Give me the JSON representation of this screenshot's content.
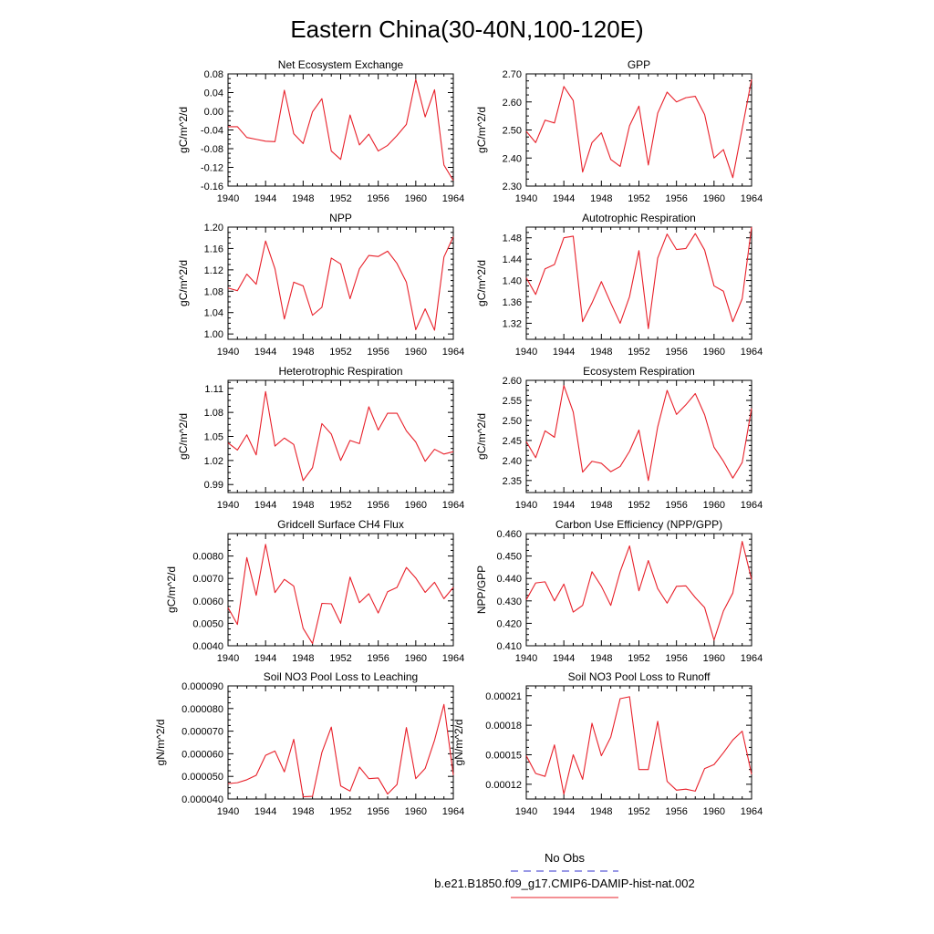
{
  "figure": {
    "title": "Eastern China(30-40N,100-120E)",
    "legend": [
      {
        "label": "No Obs",
        "color": "#3333cc",
        "style": "dashed"
      },
      {
        "label": "b.e21.B1850.f09_g17.CMIP6-DAMIP-hist-nat.002",
        "color": "#e8202a",
        "style": "solid"
      }
    ]
  },
  "chart_data": [
    {
      "type": "line",
      "title": "Net Ecosystem Exchange",
      "ylabel": "gC/m^2/d",
      "xlim": [
        1940,
        1964
      ],
      "ylim": [
        -0.16,
        0.08
      ],
      "xticks": [
        1940,
        1944,
        1948,
        1952,
        1956,
        1960,
        1964
      ],
      "yticks": [
        -0.16,
        -0.12,
        -0.08,
        -0.04,
        0.0,
        0.04,
        0.08
      ],
      "ytick_labels": [
        "-0.16",
        "-0.12",
        "-0.08",
        "-0.04",
        "0.00",
        "0.04",
        "0.08"
      ],
      "series": [
        {
          "color": "#e8202a",
          "x": [
            1940,
            1941,
            1942,
            1943,
            1944,
            1945,
            1946,
            1947,
            1948,
            1949,
            1950,
            1951,
            1952,
            1953,
            1954,
            1955,
            1956,
            1957,
            1958,
            1959,
            1960,
            1961,
            1962,
            1963,
            1964
          ],
          "values": [
            -0.033,
            -0.033,
            -0.056,
            -0.06,
            -0.064,
            -0.065,
            0.045,
            -0.048,
            -0.069,
            -0.001,
            0.027,
            -0.085,
            -0.103,
            -0.008,
            -0.072,
            -0.049,
            -0.085,
            -0.073,
            -0.052,
            -0.028,
            0.068,
            -0.012,
            0.046,
            -0.115,
            -0.148
          ]
        }
      ]
    },
    {
      "type": "line",
      "title": "GPP",
      "ylabel": "gC/m^2/d",
      "xlim": [
        1940,
        1964
      ],
      "ylim": [
        2.3,
        2.7
      ],
      "xticks": [
        1940,
        1944,
        1948,
        1952,
        1956,
        1960,
        1964
      ],
      "yticks": [
        2.3,
        2.4,
        2.5,
        2.6,
        2.7
      ],
      "ytick_labels": [
        "2.30",
        "2.40",
        "2.50",
        "2.60",
        "2.70"
      ],
      "series": [
        {
          "color": "#e8202a",
          "x": [
            1940,
            1941,
            1942,
            1943,
            1944,
            1945,
            1946,
            1947,
            1948,
            1949,
            1950,
            1951,
            1952,
            1953,
            1954,
            1955,
            1956,
            1957,
            1958,
            1959,
            1960,
            1961,
            1962,
            1963,
            1964
          ],
          "values": [
            2.495,
            2.455,
            2.535,
            2.525,
            2.655,
            2.605,
            2.35,
            2.455,
            2.49,
            2.395,
            2.37,
            2.515,
            2.585,
            2.375,
            2.56,
            2.635,
            2.6,
            2.615,
            2.62,
            2.555,
            2.4,
            2.43,
            2.33,
            2.505,
            2.68
          ]
        }
      ]
    },
    {
      "type": "line",
      "title": "NPP",
      "ylabel": "gC/m^2/d",
      "xlim": [
        1940,
        1964
      ],
      "ylim": [
        0.99,
        1.2
      ],
      "xticks": [
        1940,
        1944,
        1948,
        1952,
        1956,
        1960,
        1964
      ],
      "yticks": [
        1.0,
        1.04,
        1.08,
        1.12,
        1.16,
        1.2
      ],
      "ytick_labels": [
        "1.00",
        "1.04",
        "1.08",
        "1.12",
        "1.16",
        "1.20"
      ],
      "series": [
        {
          "color": "#e8202a",
          "x": [
            1940,
            1941,
            1942,
            1943,
            1944,
            1945,
            1946,
            1947,
            1948,
            1949,
            1950,
            1951,
            1952,
            1953,
            1954,
            1955,
            1956,
            1957,
            1958,
            1959,
            1960,
            1961,
            1962,
            1963,
            1964
          ],
          "values": [
            1.086,
            1.081,
            1.112,
            1.093,
            1.174,
            1.122,
            1.028,
            1.097,
            1.09,
            1.035,
            1.05,
            1.142,
            1.131,
            1.066,
            1.122,
            1.147,
            1.145,
            1.155,
            1.132,
            1.097,
            1.008,
            1.047,
            1.007,
            1.144,
            1.182
          ]
        }
      ]
    },
    {
      "type": "line",
      "title": "Autotrophic Respiration",
      "ylabel": "gC/m^2/d",
      "xlim": [
        1940,
        1964
      ],
      "ylim": [
        1.29,
        1.5
      ],
      "xticks": [
        1940,
        1944,
        1948,
        1952,
        1956,
        1960,
        1964
      ],
      "yticks": [
        1.32,
        1.36,
        1.4,
        1.44,
        1.48
      ],
      "ytick_labels": [
        "1.32",
        "1.36",
        "1.40",
        "1.44",
        "1.48"
      ],
      "series": [
        {
          "color": "#e8202a",
          "x": [
            1940,
            1941,
            1942,
            1943,
            1944,
            1945,
            1946,
            1947,
            1948,
            1949,
            1950,
            1951,
            1952,
            1953,
            1954,
            1955,
            1956,
            1957,
            1958,
            1959,
            1960,
            1961,
            1962,
            1963,
            1964
          ],
          "values": [
            1.405,
            1.374,
            1.422,
            1.43,
            1.48,
            1.483,
            1.323,
            1.358,
            1.398,
            1.358,
            1.32,
            1.37,
            1.456,
            1.31,
            1.442,
            1.487,
            1.458,
            1.46,
            1.488,
            1.457,
            1.39,
            1.38,
            1.323,
            1.366,
            1.5
          ]
        }
      ]
    },
    {
      "type": "line",
      "title": "Heterotrophic Respiration",
      "ylabel": "gC/m^2/d",
      "xlim": [
        1940,
        1964
      ],
      "ylim": [
        0.98,
        1.12
      ],
      "xticks": [
        1940,
        1944,
        1948,
        1952,
        1956,
        1960,
        1964
      ],
      "yticks": [
        0.99,
        1.02,
        1.05,
        1.08,
        1.11
      ],
      "ytick_labels": [
        "0.99",
        "1.02",
        "1.05",
        "1.08",
        "1.11"
      ],
      "series": [
        {
          "color": "#e8202a",
          "x": [
            1940,
            1941,
            1942,
            1943,
            1944,
            1945,
            1946,
            1947,
            1948,
            1949,
            1950,
            1951,
            1952,
            1953,
            1954,
            1955,
            1956,
            1957,
            1958,
            1959,
            1960,
            1961,
            1962,
            1963,
            1964
          ],
          "values": [
            1.042,
            1.033,
            1.052,
            1.027,
            1.106,
            1.038,
            1.048,
            1.04,
            0.995,
            1.011,
            1.066,
            1.053,
            1.02,
            1.045,
            1.041,
            1.087,
            1.058,
            1.079,
            1.079,
            1.057,
            1.043,
            1.019,
            1.034,
            1.028,
            1.031
          ]
        }
      ]
    },
    {
      "type": "line",
      "title": "Ecosystem Respiration",
      "ylabel": "gC/m^2/d",
      "xlim": [
        1940,
        1964
      ],
      "ylim": [
        2.32,
        2.6
      ],
      "xticks": [
        1940,
        1944,
        1948,
        1952,
        1956,
        1960,
        1964
      ],
      "yticks": [
        2.35,
        2.4,
        2.45,
        2.5,
        2.55,
        2.6
      ],
      "ytick_labels": [
        "2.35",
        "2.40",
        "2.45",
        "2.50",
        "2.55",
        "2.60"
      ],
      "series": [
        {
          "color": "#e8202a",
          "x": [
            1940,
            1941,
            1942,
            1943,
            1944,
            1945,
            1946,
            1947,
            1948,
            1949,
            1950,
            1951,
            1952,
            1953,
            1954,
            1955,
            1956,
            1957,
            1958,
            1959,
            1960,
            1961,
            1962,
            1963,
            1964
          ],
          "values": [
            2.447,
            2.407,
            2.474,
            2.458,
            2.587,
            2.521,
            2.371,
            2.398,
            2.393,
            2.372,
            2.385,
            2.423,
            2.476,
            2.35,
            2.484,
            2.575,
            2.515,
            2.539,
            2.567,
            2.514,
            2.433,
            2.398,
            2.356,
            2.395,
            2.53
          ]
        }
      ]
    },
    {
      "type": "line",
      "title": "Gridcell Surface CH4 Flux",
      "ylabel": "gC/m^2/d",
      "xlim": [
        1940,
        1964
      ],
      "ylim": [
        0.004,
        0.009
      ],
      "xticks": [
        1940,
        1944,
        1948,
        1952,
        1956,
        1960,
        1964
      ],
      "yticks": [
        0.004,
        0.005,
        0.006,
        0.007,
        0.008
      ],
      "ytick_labels": [
        "0.0040",
        "0.0050",
        "0.0060",
        "0.0070",
        "0.0080"
      ],
      "series": [
        {
          "color": "#e8202a",
          "x": [
            1940,
            1941,
            1942,
            1943,
            1944,
            1945,
            1946,
            1947,
            1948,
            1949,
            1950,
            1951,
            1952,
            1953,
            1954,
            1955,
            1956,
            1957,
            1958,
            1959,
            1960,
            1961,
            1962,
            1963,
            1964
          ],
          "values": [
            0.0057,
            0.00495,
            0.00793,
            0.00625,
            0.00852,
            0.00637,
            0.00696,
            0.00666,
            0.00478,
            0.0041,
            0.00589,
            0.00587,
            0.005,
            0.00706,
            0.00592,
            0.00632,
            0.00546,
            0.00641,
            0.0066,
            0.00749,
            0.00702,
            0.00638,
            0.00683,
            0.0061,
            0.0066
          ]
        }
      ]
    },
    {
      "type": "line",
      "title": "Carbon Use Efficiency (NPP/GPP)",
      "ylabel": "NPP/GPP",
      "xlim": [
        1940,
        1964
      ],
      "ylim": [
        0.41,
        0.46
      ],
      "xticks": [
        1940,
        1944,
        1948,
        1952,
        1956,
        1960,
        1964
      ],
      "yticks": [
        0.41,
        0.42,
        0.43,
        0.44,
        0.45,
        0.46
      ],
      "ytick_labels": [
        "0.410",
        "0.420",
        "0.430",
        "0.440",
        "0.450",
        "0.460"
      ],
      "series": [
        {
          "color": "#e8202a",
          "x": [
            1940,
            1941,
            1942,
            1943,
            1944,
            1945,
            1946,
            1947,
            1948,
            1949,
            1950,
            1951,
            1952,
            1953,
            1954,
            1955,
            1956,
            1957,
            1958,
            1959,
            1960,
            1961,
            1962,
            1963,
            1964
          ],
          "values": [
            0.4305,
            0.438,
            0.4385,
            0.43,
            0.4375,
            0.425,
            0.428,
            0.443,
            0.4365,
            0.428,
            0.443,
            0.4545,
            0.4345,
            0.448,
            0.4355,
            0.429,
            0.4365,
            0.4367,
            0.4315,
            0.427,
            0.4125,
            0.4255,
            0.4335,
            0.4565,
            0.4395
          ]
        }
      ]
    },
    {
      "type": "line",
      "title": "Soil NO3 Pool Loss to Leaching",
      "ylabel": "gN/m^2/d",
      "xlim": [
        1940,
        1964
      ],
      "ylim": [
        4e-05,
        9e-05
      ],
      "xticks": [
        1940,
        1944,
        1948,
        1952,
        1956,
        1960,
        1964
      ],
      "yticks": [
        4e-05,
        5e-05,
        6e-05,
        7e-05,
        8e-05,
        9e-05
      ],
      "ytick_labels": [
        "0.000040",
        "0.000050",
        "0.000060",
        "0.000070",
        "0.000080",
        "0.000090"
      ],
      "series": [
        {
          "color": "#e8202a",
          "x": [
            1940,
            1941,
            1942,
            1943,
            1944,
            1945,
            1946,
            1947,
            1948,
            1949,
            1950,
            1951,
            1952,
            1953,
            1954,
            1955,
            1956,
            1957,
            1958,
            1959,
            1960,
            1961,
            1962,
            1963,
            1964
          ],
          "values": [
            4.68e-05,
            4.72e-05,
            4.85e-05,
            5.05e-05,
            5.93e-05,
            6.12e-05,
            5.2e-05,
            6.64e-05,
            4.1e-05,
            4.12e-05,
            6.06e-05,
            7.18e-05,
            4.58e-05,
            4.35e-05,
            5.41e-05,
            4.9e-05,
            4.93e-05,
            4.22e-05,
            4.64e-05,
            7.16e-05,
            4.9e-05,
            5.35e-05,
            6.6e-05,
            8.18e-05,
            5.06e-05
          ]
        }
      ]
    },
    {
      "type": "line",
      "title": "Soil NO3 Pool Loss to Runoff",
      "ylabel": "gN/m^2/d",
      "xlim": [
        1940,
        1964
      ],
      "ylim": [
        0.000105,
        0.00022
      ],
      "xticks": [
        1940,
        1944,
        1948,
        1952,
        1956,
        1960,
        1964
      ],
      "yticks": [
        0.00012,
        0.00015,
        0.00018,
        0.00021
      ],
      "ytick_labels": [
        "0.00012",
        "0.00015",
        "0.00018",
        "0.00021"
      ],
      "series": [
        {
          "color": "#e8202a",
          "x": [
            1940,
            1941,
            1942,
            1943,
            1944,
            1945,
            1946,
            1947,
            1948,
            1949,
            1950,
            1951,
            1952,
            1953,
            1954,
            1955,
            1956,
            1957,
            1958,
            1959,
            1960,
            1961,
            1962,
            1963,
            1964
          ],
          "values": [
            0.000149,
            0.000131,
            0.000128,
            0.00016,
            0.00011,
            0.00015,
            0.000125,
            0.000182,
            0.000149,
            0.000168,
            0.000207,
            0.000209,
            0.000135,
            0.000135,
            0.000184,
            0.000123,
            0.000114,
            0.000115,
            0.000113,
            0.000136,
            0.00014,
            0.000152,
            0.000165,
            0.000174,
            0.00013
          ]
        }
      ]
    }
  ]
}
